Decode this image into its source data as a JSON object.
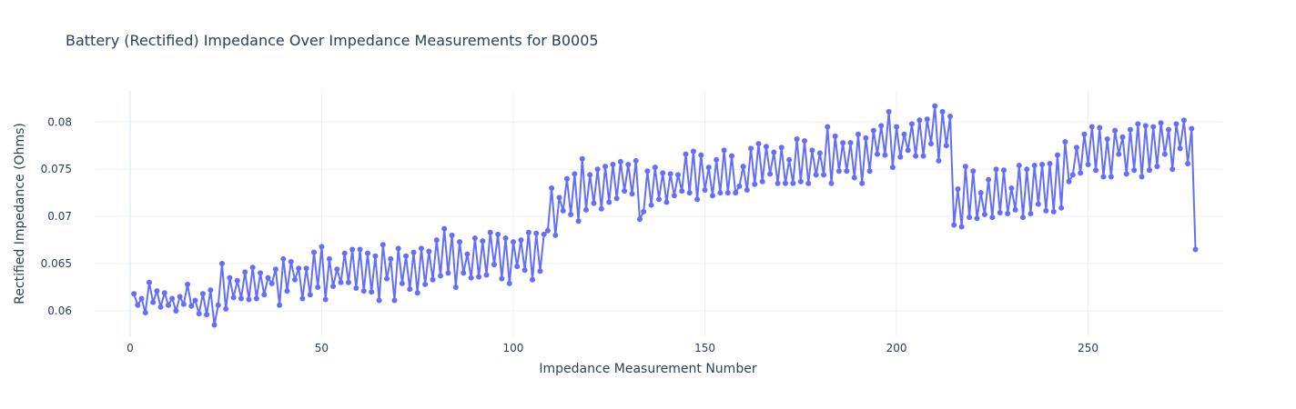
{
  "chart_data": {
    "type": "line",
    "title": "Battery (Rectified) Impedance Over Impedance Measurements for B0005",
    "xlabel": "Impedance Measurement Number",
    "ylabel": "Rectified Impedance (Ohms)",
    "xlim": [
      -9,
      285
    ],
    "ylim": [
      0.0573,
      0.0833
    ],
    "xticks": [
      0,
      50,
      100,
      150,
      200,
      250
    ],
    "xtick_labels": [
      "0",
      "50",
      "100",
      "150",
      "200",
      "250"
    ],
    "yticks": [
      0.06,
      0.065,
      0.07,
      0.075,
      0.08
    ],
    "ytick_labels": [
      "0.06",
      "0.065",
      "0.07",
      "0.075",
      "0.08"
    ],
    "grid": true,
    "series": [
      {
        "color": "#636efa",
        "mode": "lines+markers",
        "x": [
          1,
          2,
          3,
          4,
          5,
          6,
          7,
          8,
          9,
          10,
          11,
          12,
          13,
          14,
          15,
          16,
          17,
          18,
          19,
          20,
          21,
          22,
          23,
          24,
          25,
          26,
          27,
          28,
          29,
          30,
          31,
          32,
          33,
          34,
          35,
          36,
          37,
          38,
          39,
          40,
          41,
          42,
          43,
          44,
          45,
          46,
          47,
          48,
          49,
          50,
          51,
          52,
          53,
          54,
          55,
          56,
          57,
          58,
          59,
          60,
          61,
          62,
          63,
          64,
          65,
          66,
          67,
          68,
          69,
          70,
          71,
          72,
          73,
          74,
          75,
          76,
          77,
          78,
          79,
          80,
          81,
          82,
          83,
          84,
          85,
          86,
          87,
          88,
          89,
          90,
          91,
          92,
          93,
          94,
          95,
          96,
          97,
          98,
          99,
          100,
          101,
          102,
          103,
          104,
          105,
          106,
          107,
          108,
          109,
          110,
          111,
          112,
          113,
          114,
          115,
          116,
          117,
          118,
          119,
          120,
          121,
          122,
          123,
          124,
          125,
          126,
          127,
          128,
          129,
          130,
          131,
          132,
          133,
          134,
          135,
          136,
          137,
          138,
          139,
          140,
          141,
          142,
          143,
          144,
          145,
          146,
          147,
          148,
          149,
          150,
          151,
          152,
          153,
          154,
          155,
          156,
          157,
          158,
          159,
          160,
          161,
          162,
          163,
          164,
          165,
          166,
          167,
          168,
          169,
          170,
          171,
          172,
          173,
          174,
          175,
          176,
          177,
          178,
          179,
          180,
          181,
          182,
          183,
          184,
          185,
          186,
          187,
          188,
          189,
          190,
          191,
          192,
          193,
          194,
          195,
          196,
          197,
          198,
          199,
          200,
          201,
          202,
          203,
          204,
          205,
          206,
          207,
          208,
          209,
          210,
          211,
          212,
          213,
          214,
          215,
          216,
          217,
          218,
          219,
          220,
          221,
          222,
          223,
          224,
          225,
          226,
          227,
          228,
          229,
          230,
          231,
          232,
          233,
          234,
          235,
          236,
          237,
          238,
          239,
          240,
          241,
          242,
          243,
          244,
          245,
          246,
          247,
          248,
          249,
          250,
          251,
          252,
          253,
          254,
          255,
          256,
          257,
          258,
          259,
          260,
          261,
          262,
          263,
          264,
          265,
          266,
          267,
          268,
          269,
          270,
          271,
          272,
          273,
          274,
          275,
          276,
          277,
          278
        ],
        "y": [
          0.0618,
          0.0606,
          0.0613,
          0.0598,
          0.063,
          0.0609,
          0.0621,
          0.0604,
          0.0619,
          0.0606,
          0.0613,
          0.06,
          0.0615,
          0.0607,
          0.0628,
          0.0605,
          0.0611,
          0.0597,
          0.0618,
          0.0596,
          0.0622,
          0.0585,
          0.0606,
          0.065,
          0.0602,
          0.0635,
          0.0614,
          0.0632,
          0.0613,
          0.0641,
          0.0612,
          0.0646,
          0.0613,
          0.064,
          0.0617,
          0.0635,
          0.0629,
          0.0644,
          0.0606,
          0.0655,
          0.0621,
          0.0652,
          0.0633,
          0.0645,
          0.0613,
          0.0645,
          0.0617,
          0.0662,
          0.0625,
          0.0668,
          0.0612,
          0.0655,
          0.0626,
          0.0644,
          0.063,
          0.0661,
          0.063,
          0.0665,
          0.0624,
          0.0665,
          0.0621,
          0.0661,
          0.062,
          0.0658,
          0.0611,
          0.067,
          0.0634,
          0.0655,
          0.0611,
          0.0666,
          0.0629,
          0.0658,
          0.0623,
          0.0662,
          0.0619,
          0.0666,
          0.0628,
          0.0663,
          0.0633,
          0.0675,
          0.0637,
          0.0687,
          0.064,
          0.068,
          0.0625,
          0.0673,
          0.064,
          0.066,
          0.0635,
          0.0677,
          0.0636,
          0.0674,
          0.0638,
          0.0683,
          0.0649,
          0.0681,
          0.0634,
          0.0677,
          0.0629,
          0.0673,
          0.0647,
          0.0675,
          0.0643,
          0.0683,
          0.0633,
          0.0682,
          0.0642,
          0.0681,
          0.0685,
          0.073,
          0.068,
          0.072,
          0.0706,
          0.074,
          0.0702,
          0.0745,
          0.0695,
          0.0761,
          0.0707,
          0.0744,
          0.0714,
          0.075,
          0.0708,
          0.0753,
          0.0715,
          0.0755,
          0.0719,
          0.0758,
          0.0727,
          0.0755,
          0.0724,
          0.0759,
          0.0697,
          0.0705,
          0.0748,
          0.0712,
          0.0752,
          0.0718,
          0.0746,
          0.0715,
          0.0745,
          0.0722,
          0.0744,
          0.0727,
          0.0766,
          0.0725,
          0.0769,
          0.0718,
          0.0765,
          0.0728,
          0.0752,
          0.0722,
          0.076,
          0.0725,
          0.077,
          0.0725,
          0.0764,
          0.0725,
          0.0732,
          0.0753,
          0.0728,
          0.0772,
          0.0734,
          0.0777,
          0.0737,
          0.0774,
          0.0745,
          0.0768,
          0.0735,
          0.0773,
          0.0735,
          0.076,
          0.0735,
          0.0782,
          0.0737,
          0.078,
          0.0735,
          0.077,
          0.0744,
          0.0767,
          0.0744,
          0.0795,
          0.0735,
          0.0785,
          0.0748,
          0.0778,
          0.0748,
          0.0778,
          0.0741,
          0.0787,
          0.0735,
          0.0783,
          0.0748,
          0.0791,
          0.0766,
          0.0796,
          0.0765,
          0.0811,
          0.0752,
          0.0795,
          0.0763,
          0.0787,
          0.077,
          0.0798,
          0.0764,
          0.0802,
          0.0764,
          0.0803,
          0.0777,
          0.0817,
          0.0759,
          0.0811,
          0.0775,
          0.0806,
          0.0691,
          0.0729,
          0.0689,
          0.0753,
          0.0699,
          0.0748,
          0.0698,
          0.0725,
          0.0702,
          0.0739,
          0.0699,
          0.075,
          0.0704,
          0.0749,
          0.0703,
          0.073,
          0.0707,
          0.0754,
          0.0699,
          0.075,
          0.0703,
          0.0754,
          0.0713,
          0.0755,
          0.0706,
          0.0756,
          0.0705,
          0.0765,
          0.0709,
          0.0779,
          0.0737,
          0.0744,
          0.0773,
          0.0746,
          0.0787,
          0.0755,
          0.0795,
          0.0749,
          0.0794,
          0.0742,
          0.0782,
          0.0742,
          0.0791,
          0.0766,
          0.0784,
          0.0745,
          0.0792,
          0.0749,
          0.0798,
          0.0742,
          0.0796,
          0.0749,
          0.0795,
          0.0753,
          0.0799,
          0.0766,
          0.0792,
          0.075,
          0.0798,
          0.0772,
          0.0802,
          0.0756,
          0.0793,
          0.0665
        ]
      }
    ]
  }
}
